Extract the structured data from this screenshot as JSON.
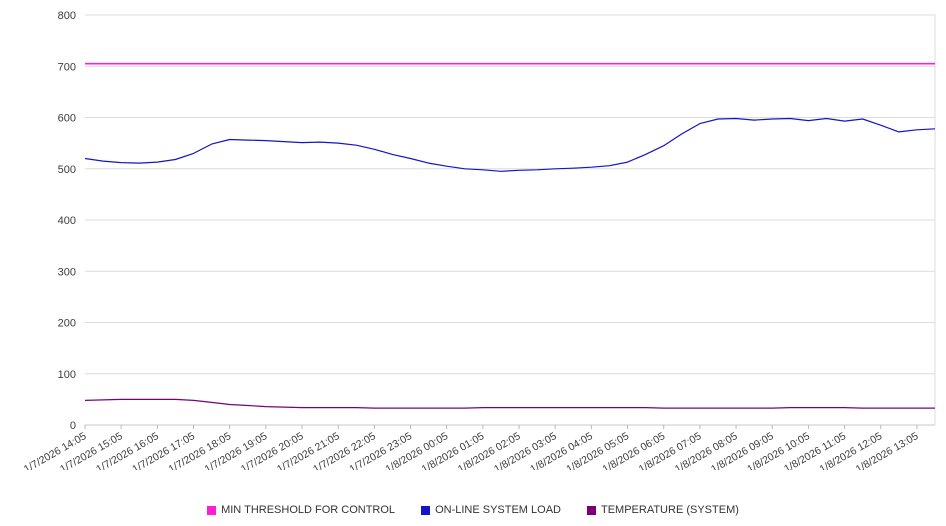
{
  "chart_data": {
    "type": "line",
    "title": "",
    "xlabel": "",
    "ylabel": "",
    "ylim": [
      0,
      800
    ],
    "y_ticks": [
      0,
      100,
      200,
      300,
      400,
      500,
      600,
      700,
      800
    ],
    "grid": true,
    "legend_position": "bottom",
    "x_labels": [
      "1/7/2026 14:05",
      "1/7/2026 15:05",
      "1/7/2026 16:05",
      "1/7/2026 17:05",
      "1/7/2026 18:05",
      "1/7/2026 19:05",
      "1/7/2026 20:05",
      "1/7/2026 21:05",
      "1/7/2026 22:05",
      "1/7/2026 23:05",
      "1/8/2026 00:05",
      "1/8/2026 01:05",
      "1/8/2026 02:05",
      "1/8/2026 03:05",
      "1/8/2026 04:05",
      "1/8/2026 05:05",
      "1/8/2026 06:05",
      "1/8/2026 07:05",
      "1/8/2026 08:05",
      "1/8/2026 09:05",
      "1/8/2026 10:05",
      "1/8/2026 11:05",
      "1/8/2026 12:05",
      "1/8/2026 13:05"
    ],
    "points_per_label": 2,
    "series": [
      {
        "name": "MIN THRESHOLD FOR CONTROL",
        "color": "#ff1fd2",
        "values": [
          705,
          705
        ]
      },
      {
        "name": "ON-LINE SYSTEM LOAD",
        "color": "#1414c8",
        "values": [
          520,
          515,
          512,
          511,
          513,
          518,
          530,
          548,
          557,
          556,
          555,
          553,
          551,
          552,
          550,
          546,
          538,
          528,
          520,
          511,
          505,
          500,
          498,
          495,
          497,
          498,
          500,
          501,
          503,
          506,
          513,
          528,
          545,
          568,
          588,
          597,
          598,
          595,
          597,
          598,
          594,
          598,
          593,
          597,
          585,
          572,
          576,
          578
        ]
      },
      {
        "name": "TEMPERATURE (SYSTEM)",
        "color": "#7a007a",
        "values": [
          48,
          49,
          50,
          50,
          50,
          50,
          48,
          44,
          40,
          38,
          36,
          35,
          34,
          34,
          34,
          34,
          33,
          33,
          33,
          33,
          33,
          33,
          34,
          34,
          34,
          34,
          34,
          34,
          34,
          34,
          34,
          34,
          33,
          33,
          33,
          33,
          33,
          33,
          33,
          34,
          34,
          34,
          34,
          33,
          33,
          33,
          33,
          33
        ]
      }
    ]
  }
}
